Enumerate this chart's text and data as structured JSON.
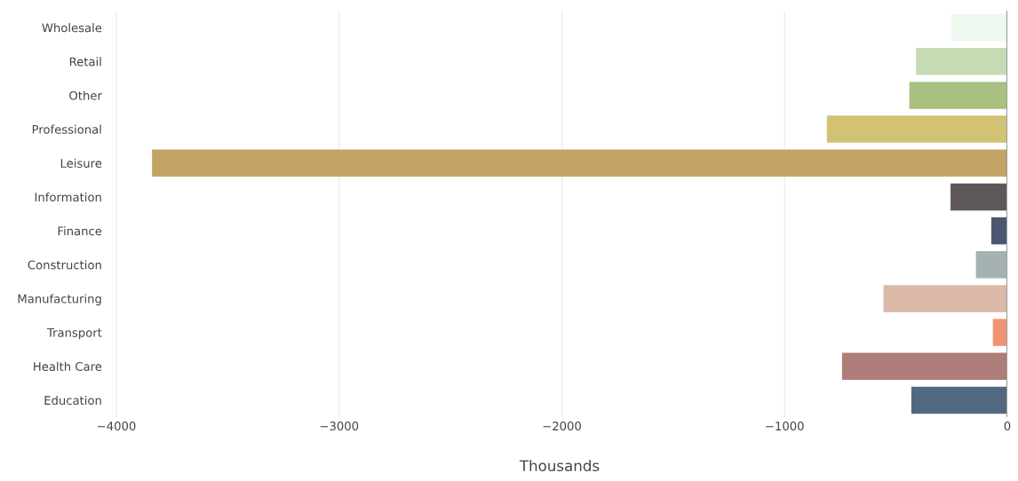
{
  "chart_data": {
    "type": "bar",
    "orientation": "horizontal",
    "xlabel": "Thousands",
    "categories": [
      "Wholesale",
      "Retail",
      "Other",
      "Professional",
      "Leisure",
      "Information",
      "Finance",
      "Construction",
      "Manufacturing",
      "Transport",
      "Health Care",
      "Education"
    ],
    "values": [
      -250,
      -410,
      -440,
      -810,
      -3840,
      -255,
      -72,
      -141,
      -556,
      -65,
      -742,
      -431
    ],
    "colors": [
      "#edf8ee",
      "#c6dbb4",
      "#a8c080",
      "#d2c274",
      "#c4a466",
      "#5e5758",
      "#4b5670",
      "#a6b2b2",
      "#dbb9a8",
      "#ee9574",
      "#ad7d77",
      "#526880"
    ],
    "xlim": [
      -4020,
      0
    ],
    "xticks": [
      {
        "value": -4000,
        "label": "−4000"
      },
      {
        "value": -3000,
        "label": "−3000"
      },
      {
        "value": -2000,
        "label": "−2000"
      },
      {
        "value": -1000,
        "label": "−1000"
      },
      0
    ],
    "ref_lines": [
      {
        "axis": "x",
        "value": 0,
        "label": null,
        "color": "#999999"
      }
    ],
    "grid": "x",
    "legend": false
  }
}
